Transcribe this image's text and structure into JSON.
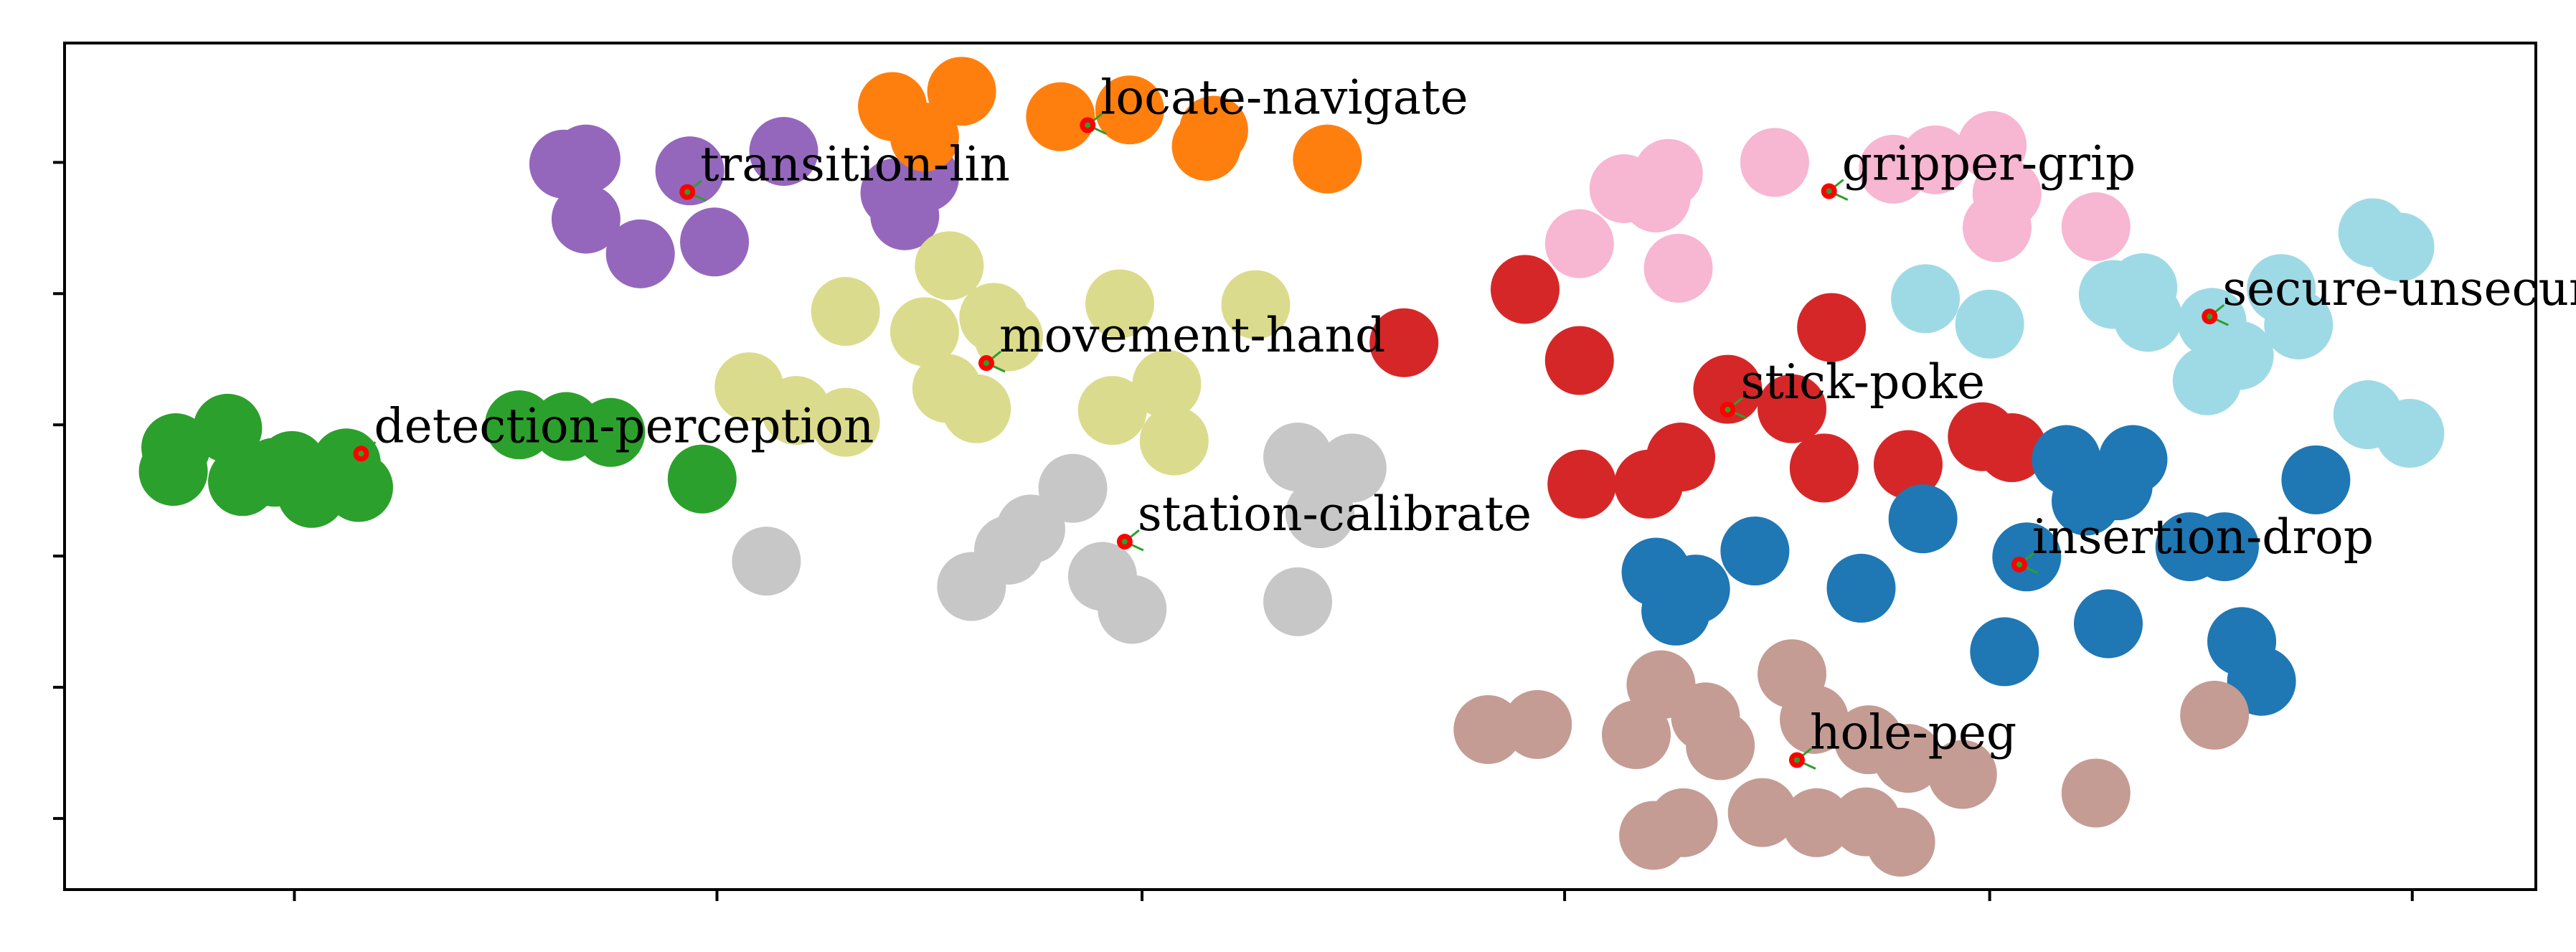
{
  "chart_data": {
    "type": "scatter",
    "title": "",
    "xlabel": "",
    "ylabel": "",
    "xlim": [
      0,
      100
    ],
    "ylim": [
      0,
      100
    ],
    "grid": false,
    "legend": "none",
    "x_ticks": [
      9.3,
      26.4,
      43.6,
      60.7,
      77.9,
      95.0
    ],
    "y_ticks": [
      8.4,
      23.9,
      39.4,
      54.9,
      70.4,
      85.9
    ],
    "center_marker_color": "#ff0000",
    "center_marker_stroke": "#2ca02c",
    "series": [
      {
        "color": "#2ca02c",
        "label": "detection-perception",
        "center": [
          12.0,
          51.5
        ],
        "points": [
          [
            4.5,
            52.2
          ],
          [
            6.6,
            54.5
          ],
          [
            9.2,
            50.1
          ],
          [
            7.2,
            48.2
          ],
          [
            11.4,
            50.4
          ],
          [
            8.5,
            49.3
          ],
          [
            4.4,
            49.4
          ],
          [
            10.0,
            46.8
          ],
          [
            11.9,
            47.5
          ],
          [
            18.4,
            54.9
          ],
          [
            20.3,
            54.7
          ],
          [
            22.1,
            54.0
          ],
          [
            25.8,
            48.5
          ]
        ]
      },
      {
        "color": "#9467bd",
        "label": "transition-lin",
        "center": [
          25.2,
          82.4
        ],
        "points": [
          [
            20.2,
            85.7
          ],
          [
            21.1,
            86.3
          ],
          [
            21.1,
            79.2
          ],
          [
            23.3,
            75.1
          ],
          [
            25.3,
            84.9
          ],
          [
            26.3,
            76.5
          ],
          [
            29.1,
            87.2
          ],
          [
            34.0,
            79.6
          ],
          [
            34.8,
            84.1
          ],
          [
            33.6,
            82.3
          ]
        ]
      },
      {
        "color": "#ff7f0e",
        "label": "locate-navigate",
        "center": [
          41.4,
          90.3
        ],
        "points": [
          [
            33.5,
            92.5
          ],
          [
            34.8,
            88.9
          ],
          [
            36.3,
            94.3
          ],
          [
            40.3,
            91.3
          ],
          [
            43.1,
            92.1
          ],
          [
            46.2,
            87.8
          ],
          [
            46.5,
            89.7
          ],
          [
            51.1,
            86.3
          ]
        ]
      },
      {
        "color": "#dbdb8d",
        "label": "movement-hand",
        "center": [
          37.3,
          62.2
        ],
        "points": [
          [
            27.7,
            59.4
          ],
          [
            29.6,
            56.6
          ],
          [
            31.6,
            55.2
          ],
          [
            31.6,
            68.3
          ],
          [
            34.8,
            65.9
          ],
          [
            35.8,
            73.7
          ],
          [
            35.7,
            59.2
          ],
          [
            36.9,
            56.8
          ],
          [
            37.6,
            67.6
          ],
          [
            38.2,
            65.3
          ],
          [
            42.4,
            56.6
          ],
          [
            42.7,
            69.2
          ],
          [
            44.6,
            59.7
          ],
          [
            44.9,
            53.0
          ],
          [
            48.2,
            69.1
          ]
        ]
      },
      {
        "color": "#c7c7c7",
        "label": "station-calibrate",
        "center": [
          42.9,
          41.1
        ],
        "points": [
          [
            28.4,
            38.8
          ],
          [
            36.7,
            35.8
          ],
          [
            38.2,
            40.1
          ],
          [
            39.1,
            42.6
          ],
          [
            40.8,
            47.4
          ],
          [
            42.0,
            37.0
          ],
          [
            43.2,
            33.1
          ],
          [
            49.9,
            51.1
          ],
          [
            52.1,
            49.8
          ],
          [
            50.8,
            44.4
          ],
          [
            49.9,
            34.0
          ]
        ]
      },
      {
        "color": "#d62728",
        "label": "stick-poke",
        "center": [
          67.3,
          56.7
        ],
        "points": [
          [
            54.2,
            64.6
          ],
          [
            59.1,
            70.9
          ],
          [
            61.3,
            62.5
          ],
          [
            61.4,
            47.9
          ],
          [
            64.1,
            47.9
          ],
          [
            65.4,
            51.1
          ],
          [
            67.3,
            59.1
          ],
          [
            69.9,
            56.8
          ],
          [
            71.5,
            66.4
          ],
          [
            71.2,
            49.8
          ],
          [
            74.6,
            50.2
          ],
          [
            77.6,
            53.5
          ],
          [
            78.8,
            52.2
          ]
        ]
      },
      {
        "color": "#f7b6d2",
        "label": "gripper-grip",
        "center": [
          71.4,
          82.5
        ],
        "points": [
          [
            61.3,
            76.3
          ],
          [
            63.1,
            82.8
          ],
          [
            64.4,
            81.7
          ],
          [
            64.9,
            84.6
          ],
          [
            65.3,
            73.4
          ],
          [
            69.2,
            85.9
          ],
          [
            74.0,
            85.1
          ],
          [
            75.7,
            86.2
          ],
          [
            78.0,
            87.9
          ],
          [
            78.6,
            82.2
          ],
          [
            78.2,
            78.2
          ],
          [
            82.2,
            78.3
          ]
        ]
      },
      {
        "color": "#9edae5",
        "label": "secure-unsecure",
        "center": [
          86.8,
          67.7
        ],
        "points": [
          [
            75.3,
            69.8
          ],
          [
            77.9,
            66.8
          ],
          [
            82.9,
            70.3
          ],
          [
            84.1,
            71.1
          ],
          [
            84.3,
            67.6
          ],
          [
            86.9,
            67.0
          ],
          [
            86.7,
            60.1
          ],
          [
            88.0,
            63.1
          ],
          [
            89.7,
            71.0
          ],
          [
            90.4,
            66.7
          ],
          [
            93.4,
            77.6
          ],
          [
            94.5,
            75.9
          ],
          [
            93.2,
            56.1
          ],
          [
            94.9,
            53.9
          ]
        ]
      },
      {
        "color": "#1f77b4",
        "label": "insertion-drop",
        "center": [
          79.1,
          38.4
        ],
        "points": [
          [
            64.4,
            37.5
          ],
          [
            65.2,
            32.9
          ],
          [
            66.0,
            35.5
          ],
          [
            68.4,
            40.0
          ],
          [
            72.7,
            35.6
          ],
          [
            75.2,
            43.8
          ],
          [
            79.4,
            39.3
          ],
          [
            81.0,
            50.8
          ],
          [
            81.8,
            45.9
          ],
          [
            83.1,
            47.7
          ],
          [
            83.7,
            50.8
          ],
          [
            86.0,
            40.5
          ],
          [
            87.4,
            40.5
          ],
          [
            82.7,
            31.4
          ],
          [
            78.5,
            28.1
          ],
          [
            88.1,
            29.3
          ],
          [
            88.9,
            24.6
          ],
          [
            91.1,
            48.4
          ]
        ]
      },
      {
        "color": "#c49c94",
        "label": "hole-peg",
        "center": [
          70.1,
          15.3
        ],
        "points": [
          [
            57.6,
            18.9
          ],
          [
            59.6,
            19.5
          ],
          [
            63.6,
            18.3
          ],
          [
            64.6,
            24.2
          ],
          [
            66.4,
            20.4
          ],
          [
            67.0,
            17.0
          ],
          [
            69.9,
            25.5
          ],
          [
            70.8,
            20.1
          ],
          [
            73.0,
            17.7
          ],
          [
            74.6,
            15.5
          ],
          [
            76.8,
            13.6
          ],
          [
            82.2,
            11.4
          ],
          [
            87.0,
            20.6
          ],
          [
            64.3,
            6.4
          ],
          [
            65.5,
            7.9
          ],
          [
            68.7,
            9.1
          ],
          [
            70.9,
            7.9
          ],
          [
            72.9,
            8.0
          ],
          [
            74.3,
            5.6
          ]
        ]
      }
    ]
  }
}
